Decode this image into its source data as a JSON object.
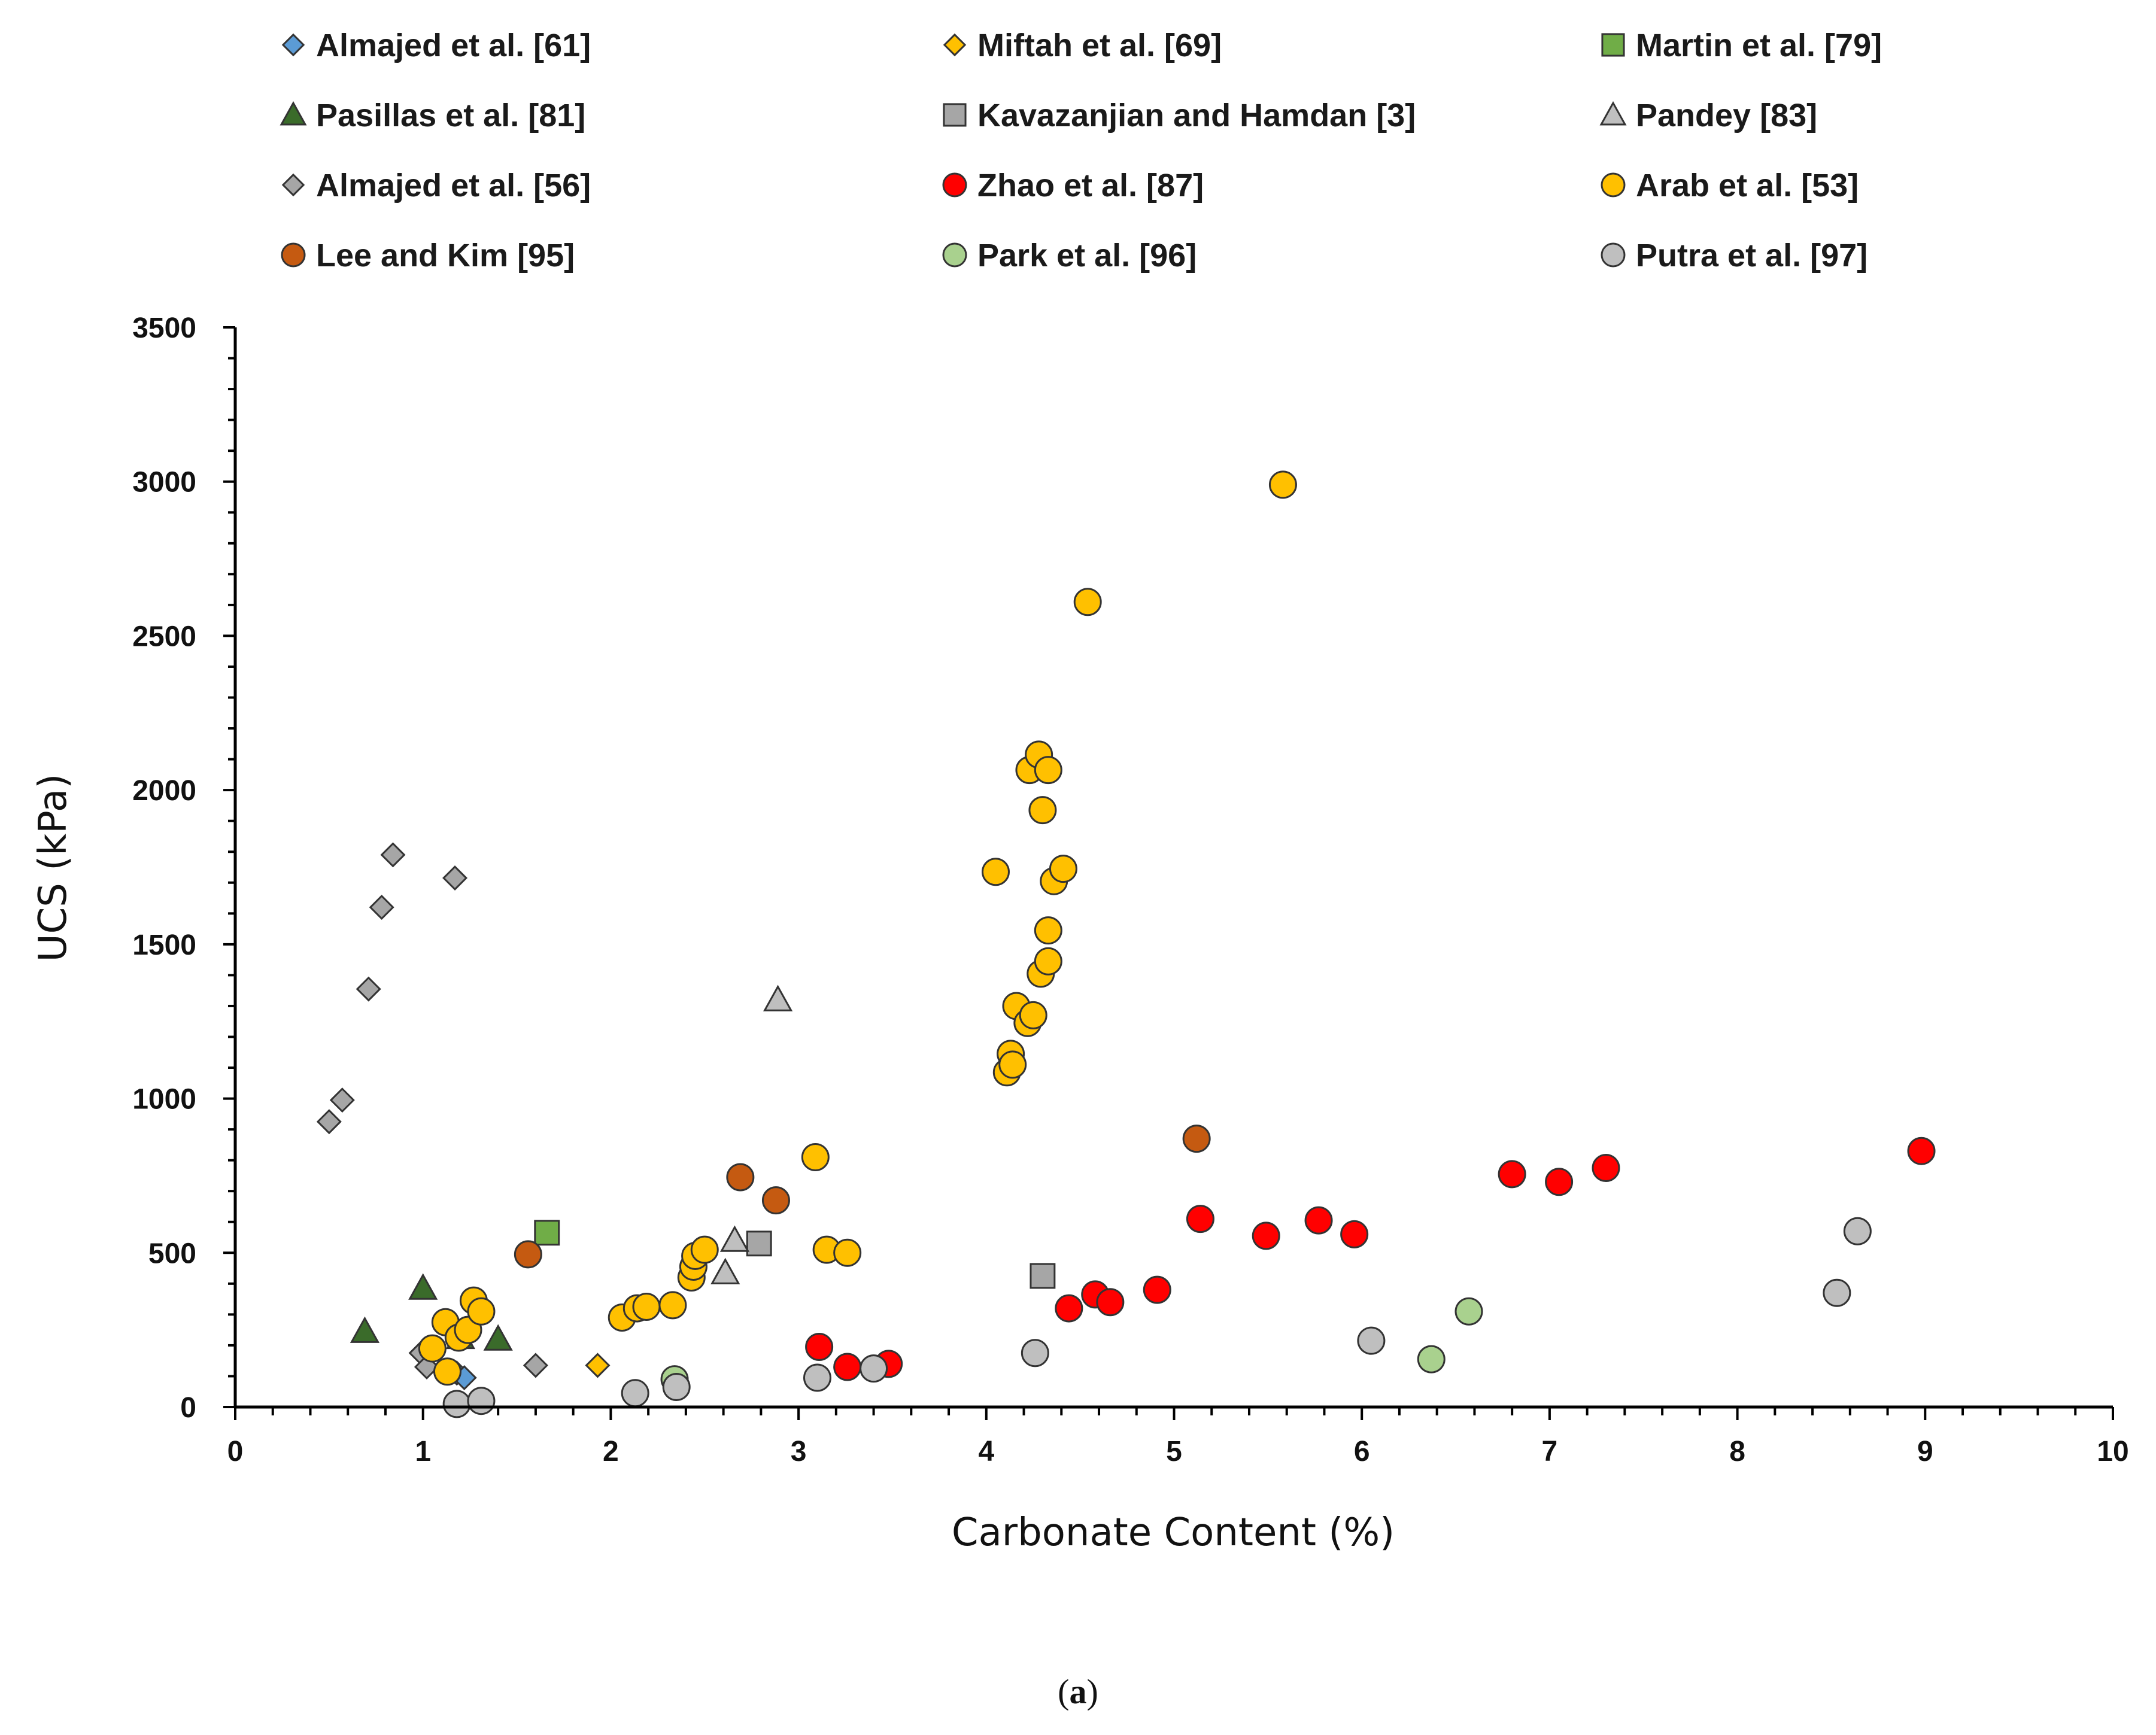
{
  "chart_data": {
    "type": "scatter",
    "xlabel": "Carbonate Content (%)",
    "ylabel": "UCS (kPa)",
    "xlim": [
      0,
      10
    ],
    "ylim": [
      0,
      3500
    ],
    "x_ticks": [
      "0",
      "1",
      "2",
      "3",
      "4",
      "5",
      "6",
      "7",
      "8",
      "9",
      "10"
    ],
    "y_ticks": [
      "0",
      "500",
      "1000",
      "1500",
      "2000",
      "2500",
      "3000",
      "3500"
    ],
    "caption_open": "(",
    "caption_letter": "a",
    "caption_close": ")",
    "series": [
      {
        "name": "Almajed et al. [61]",
        "marker": "diamond",
        "color": "#5b9bd5",
        "points": [
          [
            1.18,
            110
          ],
          [
            1.22,
            95
          ]
        ]
      },
      {
        "name": "Miftah et al. [69]",
        "marker": "diamond",
        "color": "#ffc000",
        "points": [
          [
            1.93,
            135
          ]
        ]
      },
      {
        "name": "Martin et al. [79]",
        "marker": "square",
        "color": "#70ad47",
        "points": [
          [
            1.66,
            565
          ]
        ]
      },
      {
        "name": "Pasillas et al. [81]",
        "marker": "triangle",
        "color": "#3a6b2a",
        "points": [
          [
            0.69,
            245
          ],
          [
            1.0,
            385
          ],
          [
            1.2,
            225
          ],
          [
            1.4,
            220
          ]
        ]
      },
      {
        "name": "Kavazanjian and Hamdan [3]",
        "marker": "square",
        "color": "#a6a6a6",
        "points": [
          [
            2.79,
            530
          ],
          [
            4.3,
            425
          ]
        ]
      },
      {
        "name": "Pandey [83]",
        "marker": "triangle",
        "color": "#bfbfbf",
        "points": [
          [
            2.61,
            435
          ],
          [
            2.66,
            540
          ],
          [
            2.89,
            1320
          ]
        ]
      },
      {
        "name": "Almajed et al. [56]",
        "marker": "diamond",
        "color": "#a6a6a6",
        "points": [
          [
            0.5,
            925
          ],
          [
            0.57,
            995
          ],
          [
            0.71,
            1355
          ],
          [
            0.78,
            1620
          ],
          [
            0.84,
            1790
          ],
          [
            1.17,
            1715
          ],
          [
            0.99,
            175
          ],
          [
            1.02,
            130
          ],
          [
            1.6,
            135
          ]
        ]
      },
      {
        "name": "Zhao et al. [87]",
        "marker": "circle",
        "color": "#ff0000",
        "points": [
          [
            3.11,
            195
          ],
          [
            3.26,
            130
          ],
          [
            3.48,
            140
          ],
          [
            4.44,
            320
          ],
          [
            4.58,
            365
          ],
          [
            4.66,
            340
          ],
          [
            4.91,
            380
          ],
          [
            5.14,
            610
          ],
          [
            5.49,
            555
          ],
          [
            5.77,
            605
          ],
          [
            5.96,
            560
          ],
          [
            6.8,
            755
          ],
          [
            7.05,
            730
          ],
          [
            7.3,
            775
          ],
          [
            8.98,
            830
          ]
        ]
      },
      {
        "name": "Arab et al. [53]",
        "marker": "circle",
        "color": "#ffc000",
        "points": [
          [
            1.05,
            190
          ],
          [
            1.12,
            275
          ],
          [
            1.13,
            115
          ],
          [
            1.19,
            225
          ],
          [
            1.24,
            250
          ],
          [
            1.27,
            345
          ],
          [
            1.31,
            310
          ],
          [
            2.06,
            290
          ],
          [
            2.14,
            320
          ],
          [
            2.19,
            325
          ],
          [
            2.33,
            330
          ],
          [
            2.43,
            420
          ],
          [
            2.44,
            455
          ],
          [
            2.45,
            490
          ],
          [
            2.5,
            510
          ],
          [
            3.09,
            810
          ],
          [
            3.15,
            510
          ],
          [
            3.26,
            500
          ],
          [
            4.05,
            1735
          ],
          [
            4.11,
            1085
          ],
          [
            4.13,
            1145
          ],
          [
            4.14,
            1110
          ],
          [
            4.16,
            1300
          ],
          [
            4.22,
            1245
          ],
          [
            4.23,
            2065
          ],
          [
            4.25,
            1270
          ],
          [
            4.28,
            2115
          ],
          [
            4.29,
            1405
          ],
          [
            4.3,
            1935
          ],
          [
            4.33,
            2065
          ],
          [
            4.33,
            1545
          ],
          [
            4.33,
            1445
          ],
          [
            4.36,
            1705
          ],
          [
            4.41,
            1745
          ],
          [
            4.54,
            2610
          ],
          [
            5.58,
            2990
          ]
        ]
      },
      {
        "name": "Lee and Kim [95]",
        "marker": "circle",
        "color": "#c55a11",
        "points": [
          [
            1.56,
            495
          ],
          [
            2.69,
            745
          ],
          [
            2.88,
            670
          ],
          [
            5.12,
            870
          ]
        ]
      },
      {
        "name": "Park et al. [96]",
        "marker": "circle",
        "color": "#a9d18e",
        "points": [
          [
            2.34,
            90
          ],
          [
            6.37,
            155
          ],
          [
            6.57,
            310
          ]
        ]
      },
      {
        "name": "Putra et al. [97]",
        "marker": "circle",
        "color": "#bfbfbf",
        "points": [
          [
            1.18,
            10
          ],
          [
            1.31,
            20
          ],
          [
            2.13,
            45
          ],
          [
            2.35,
            65
          ],
          [
            3.1,
            95
          ],
          [
            3.4,
            125
          ],
          [
            4.26,
            175
          ],
          [
            6.05,
            215
          ],
          [
            8.53,
            370
          ],
          [
            8.64,
            570
          ]
        ]
      }
    ]
  }
}
